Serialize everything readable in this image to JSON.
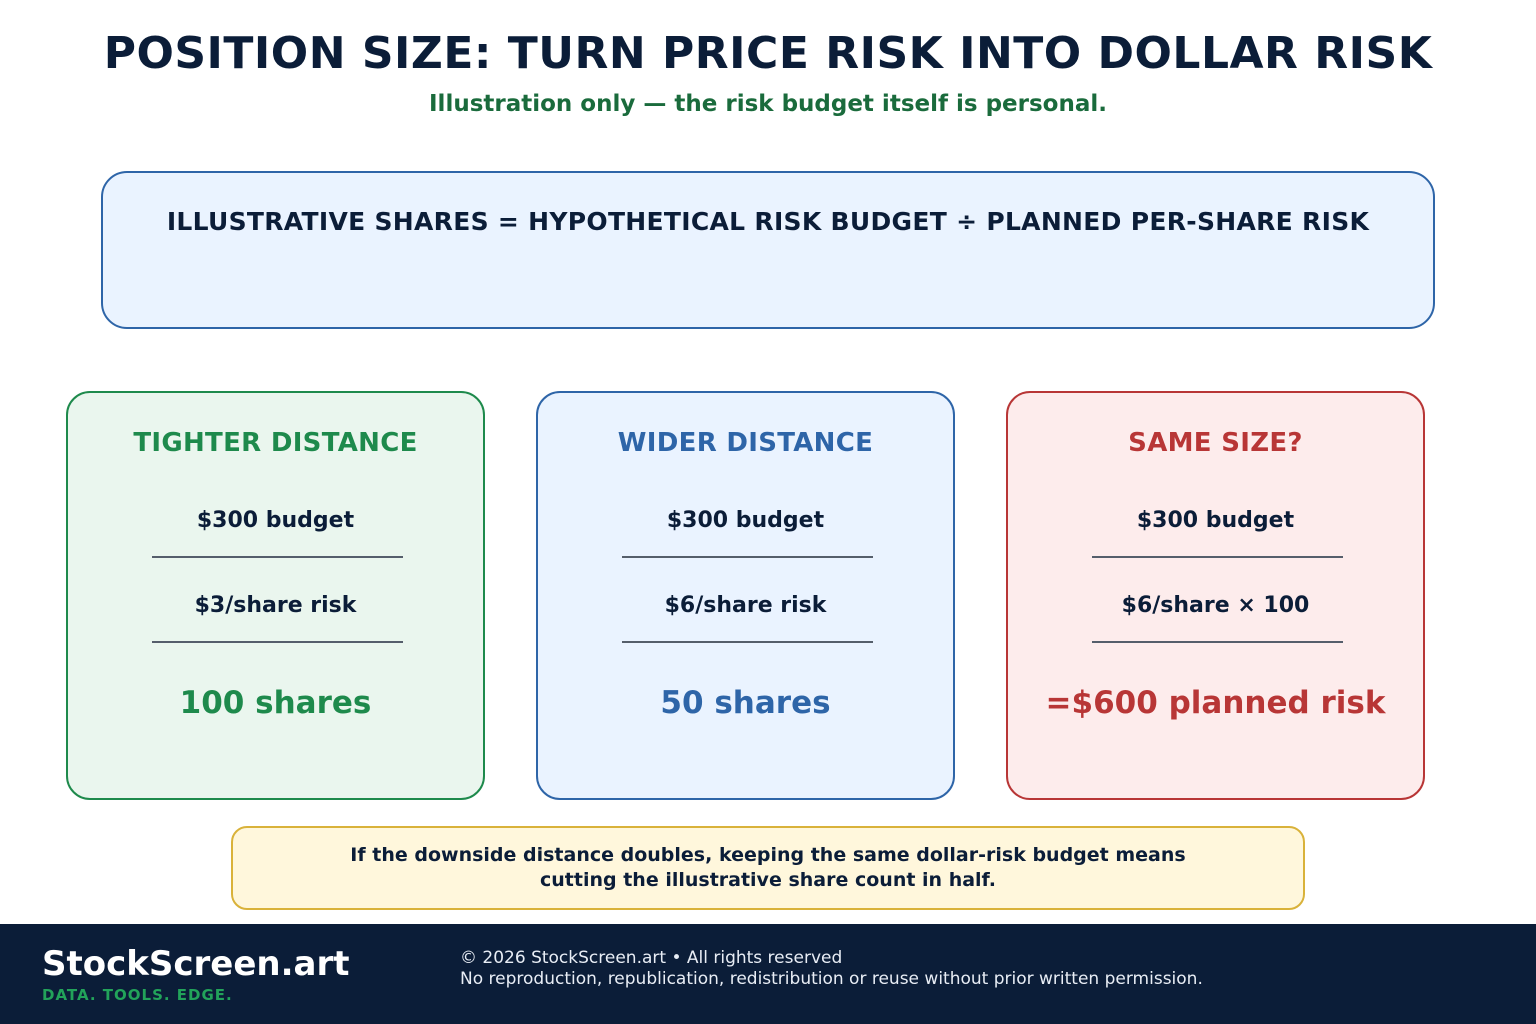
{
  "header": {
    "title": "POSITION SIZE: TURN PRICE RISK INTO DOLLAR RISK",
    "subtitle": "Illustration only — the risk budget itself is personal."
  },
  "formula": {
    "text": "ILLUSTRATIVE SHARES = HYPOTHETICAL RISK BUDGET ÷ PLANNED PER-SHARE RISK"
  },
  "cards": [
    {
      "title": "TIGHTER DISTANCE",
      "line1": "$300 budget",
      "line2": "$3/share risk",
      "result": "100 shares",
      "color": "#1e8a4c"
    },
    {
      "title": "WIDER DISTANCE",
      "line1": "$300 budget",
      "line2": "$6/share risk",
      "result": "50 shares",
      "color": "#2e65a8"
    },
    {
      "title": "SAME SIZE?",
      "line1": "$300 budget",
      "line2": "$6/share × 100",
      "result": "=$600 planned risk",
      "color": "#b83636"
    }
  ],
  "note": {
    "line1": "If the downside distance doubles, keeping the same dollar-risk budget means",
    "line2": "cutting the illustrative share count in half."
  },
  "footer": {
    "brand": "StockScreen.art",
    "tagline": "DATA. TOOLS. EDGE.",
    "copyright": "© 2026 StockScreen.art • All rights reserved",
    "permission": "No reproduction, republication, redistribution or reuse without prior written permission."
  }
}
